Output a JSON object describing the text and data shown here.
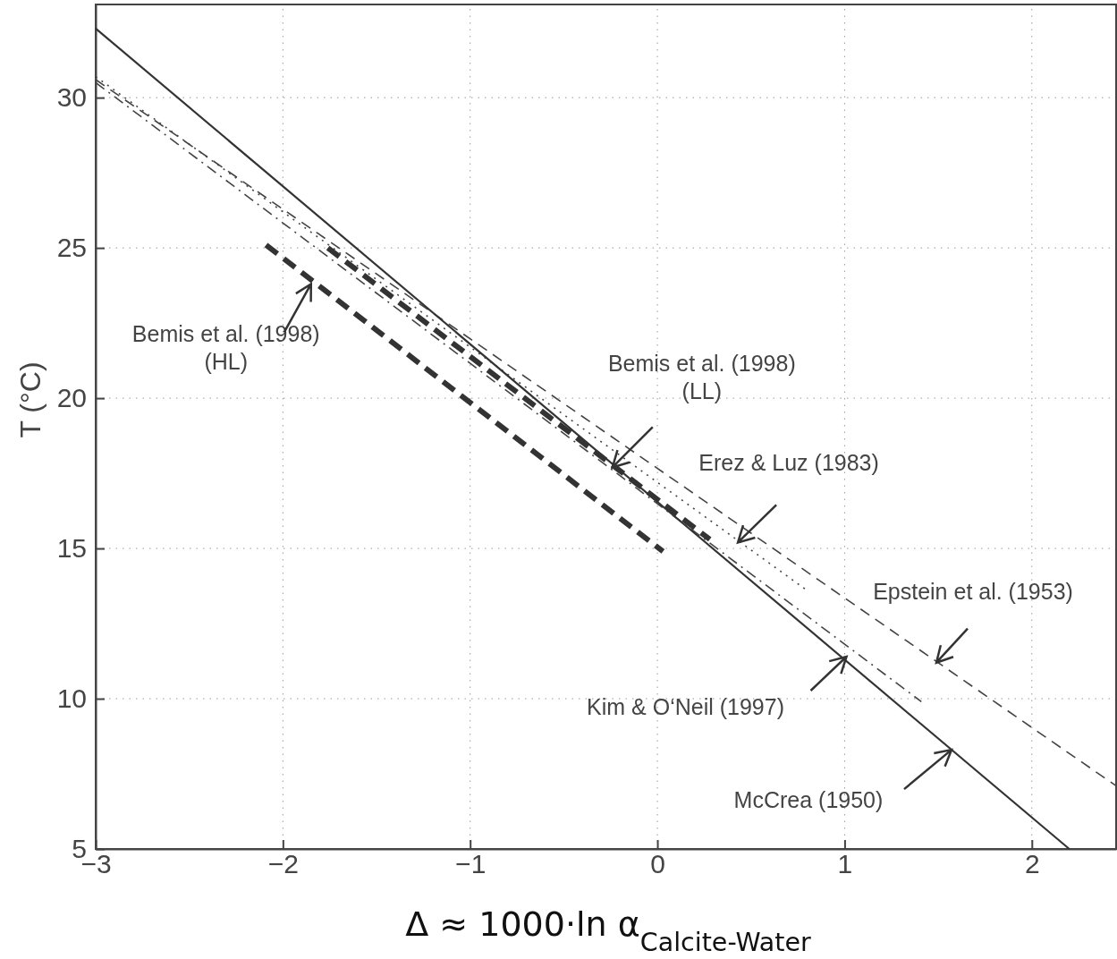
{
  "chart_data": {
    "type": "line",
    "xlabel": "Δ ≈ 1000·ln α$_{Calcite-Water}$",
    "ylabel": "T (°C)",
    "xlim": [
      -3,
      2.45
    ],
    "ylim": [
      5,
      33.1
    ],
    "xticks": [
      {
        "value": -3,
        "label": "−3"
      },
      {
        "value": -2,
        "label": "−2"
      },
      {
        "value": -1,
        "label": "−1"
      },
      0,
      1,
      2
    ],
    "yticks": [
      5,
      10,
      15,
      20,
      25,
      30
    ],
    "grid": true,
    "series": [
      {
        "color": "#333333",
        "line_style": "dashed",
        "x": [
          -2.09,
          0.03
        ],
        "values": [
          25.1,
          14.9
        ]
      },
      {
        "color": "#333333",
        "line_style": "dashed",
        "x": [
          -1.76,
          0.28
        ],
        "values": [
          25.0,
          15.3
        ]
      },
      {
        "color": "#444444",
        "line_style": "dotted",
        "x": [
          -3,
          0.8
        ],
        "values": [
          30.7,
          13.6
        ]
      },
      {
        "color": "#444444",
        "line_style": "dashed",
        "x": [
          -3,
          2.45
        ],
        "values": [
          30.6,
          7.1
        ]
      },
      {
        "color": "#444444",
        "line_style": "dashdot",
        "x": [
          -3,
          1.41
        ],
        "values": [
          30.5,
          9.9
        ]
      },
      {
        "color": "#333333",
        "line_style": "solid",
        "x": [
          -3,
          2.2
        ],
        "values": [
          32.3,
          5.0
        ]
      }
    ],
    "annotations": [
      {
        "text": "Bemis et al. (1998) (HL)",
        "x": -1.85,
        "y": 23.8
      },
      {
        "text": "Bemis et al. (1998) (LL)",
        "x": -0.24,
        "y": 17.7
      },
      {
        "text": "Erez & Luz (1983)",
        "x": 0.43,
        "y": 15.2
      },
      {
        "text": "Epstein et al. (1953)",
        "x": 1.49,
        "y": 11.2
      },
      {
        "text": "Kim & O‘Neil (1997)",
        "x": 1.01,
        "y": 11.4
      },
      {
        "text": "McCrea (1950)",
        "x": 1.571,
        "y": 8.3
      }
    ]
  }
}
